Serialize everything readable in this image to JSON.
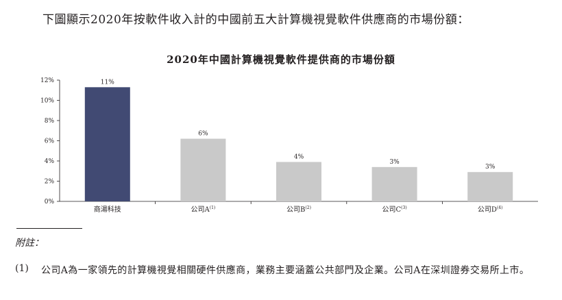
{
  "intro_text": "下圖顯示2020年按軟件收入計的中國前五大計算機視覺軟件供應商的市場份額：",
  "chart_data": {
    "type": "bar",
    "title": "2020年中國計算機視覺軟件提供商的市場份額",
    "xlabel": "",
    "ylabel": "",
    "ylim": [
      0,
      12
    ],
    "yticks": [
      "0%",
      "2%",
      "4%",
      "6%",
      "8%",
      "10%",
      "12%"
    ],
    "ytick_values": [
      0,
      2,
      4,
      6,
      8,
      10,
      12
    ],
    "categories": [
      {
        "name": "商湯科技",
        "note": ""
      },
      {
        "name": "公司A",
        "note": "(1)"
      },
      {
        "name": "公司B",
        "note": "(2)"
      },
      {
        "name": "公司C",
        "note": "(3)"
      },
      {
        "name": "公司D",
        "note": "(4)"
      }
    ],
    "values": [
      11.3,
      6.2,
      3.9,
      3.4,
      2.9
    ],
    "value_labels": [
      "11%",
      "6%",
      "4%",
      "3%",
      "3%"
    ],
    "colors": [
      "#414a73",
      "#c9c9c9",
      "#c9c9c9",
      "#c9c9c9",
      "#c9c9c9"
    ],
    "grid": false
  },
  "notes": {
    "heading": "附註：",
    "items": [
      {
        "num": "(1)",
        "text": "公司A為一家領先的計算機視覺相關硬件供應商，業務主要涵蓋公共部門及企業。公司A在深圳證券交易所上市。"
      }
    ]
  }
}
